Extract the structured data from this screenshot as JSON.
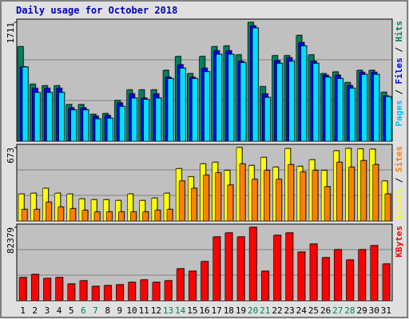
{
  "chart_data": [
    {
      "type": "bar",
      "title": "Daily usage for October 2018",
      "categories": [
        "1",
        "2",
        "3",
        "4",
        "5",
        "6",
        "7",
        "8",
        "9",
        "10",
        "11",
        "12",
        "13",
        "14",
        "15",
        "16",
        "17",
        "18",
        "19",
        "20",
        "21",
        "22",
        "23",
        "24",
        "25",
        "26",
        "27",
        "28",
        "29",
        "30",
        "31"
      ],
      "category_colors": [
        "#000000",
        "#000000",
        "#000000",
        "#000000",
        "#000000",
        "#008060",
        "#008060",
        "#000000",
        "#000000",
        "#000000",
        "#000000",
        "#000000",
        "#008060",
        "#008060",
        "#000000",
        "#000000",
        "#000000",
        "#000000",
        "#000000",
        "#008060",
        "#008060",
        "#000000",
        "#000000",
        "#000000",
        "#000000",
        "#000000",
        "#008060",
        "#008060",
        "#000000",
        "#000000",
        "#000000"
      ],
      "legend_separator": " / ",
      "ylim": [
        0,
        1711
      ],
      "yticks": [
        1711
      ],
      "series": [
        {
          "name": "Hits",
          "color": "#00805c",
          "legend_color": "#00805c",
          "values": [
            1360,
            820,
            797,
            797,
            527,
            527,
            387,
            398,
            586,
            738,
            738,
            738,
            1020,
            1219,
            973,
            1219,
            1360,
            1371,
            1242,
            1711,
            785,
            1231,
            1231,
            1523,
            1242,
            973,
            997,
            844,
            1020,
            1020,
            703
          ]
        },
        {
          "name": "Files",
          "color": "#0000ff",
          "legend_color": "#0000ff",
          "values": [
            1070,
            760,
            760,
            760,
            480,
            480,
            360,
            370,
            550,
            680,
            620,
            680,
            920,
            1100,
            920,
            1050,
            1300,
            1300,
            1150,
            1660,
            680,
            1160,
            1200,
            1420,
            1150,
            950,
            950,
            800,
            990,
            990,
            650
          ]
        },
        {
          "name": "Pages",
          "color": "#00e0ff",
          "legend_color": "#00c0ff",
          "values": [
            1067,
            700,
            700,
            700,
            450,
            450,
            320,
            330,
            500,
            620,
            600,
            620,
            900,
            1050,
            900,
            1000,
            1250,
            1250,
            1130,
            1630,
            630,
            1120,
            1150,
            1370,
            1120,
            920,
            900,
            760,
            960,
            960,
            640
          ]
        }
      ]
    },
    {
      "type": "bar",
      "legend_separator": " / ",
      "ylim": [
        0,
        673
      ],
      "yticks": [
        673
      ],
      "series": [
        {
          "name": "Sites",
          "color": "#ffff00",
          "legend_color": "#ff8000",
          "values": [
            247,
            254,
            299,
            254,
            247,
            202,
            194,
            194,
            187,
            247,
            187,
            209,
            254,
            479,
            404,
            523,
            538,
            463,
            673,
            508,
            583,
            493,
            663,
            500,
            561,
            463,
            643,
            665,
            660,
            658,
            366
          ]
        },
        {
          "name": "Visits",
          "color": "#ff8000",
          "legend_color": "#ffff00",
          "values": [
            105,
            105,
            172,
            127,
            112,
            97,
            82,
            82,
            82,
            82,
            82,
            97,
            105,
            366,
            299,
            419,
            441,
            329,
            523,
            381,
            463,
            381,
            516,
            449,
            463,
            314,
            538,
            493,
            553,
            516,
            247
          ]
        }
      ]
    },
    {
      "type": "bar",
      "ylim": [
        0,
        82379
      ],
      "yticks": [
        82379
      ],
      "series": [
        {
          "name": "KBytes",
          "color": "#ff0000",
          "legend_color": "#ff0000",
          "values": [
            26000,
            29500,
            25000,
            26000,
            18800,
            22400,
            16100,
            17000,
            17900,
            20600,
            23300,
            20600,
            22400,
            35800,
            33100,
            43900,
            71600,
            76100,
            71600,
            82379,
            33100,
            73400,
            76100,
            54600,
            63600,
            48300,
            57300,
            45700,
            57300,
            61800,
            41200
          ]
        }
      ]
    }
  ]
}
